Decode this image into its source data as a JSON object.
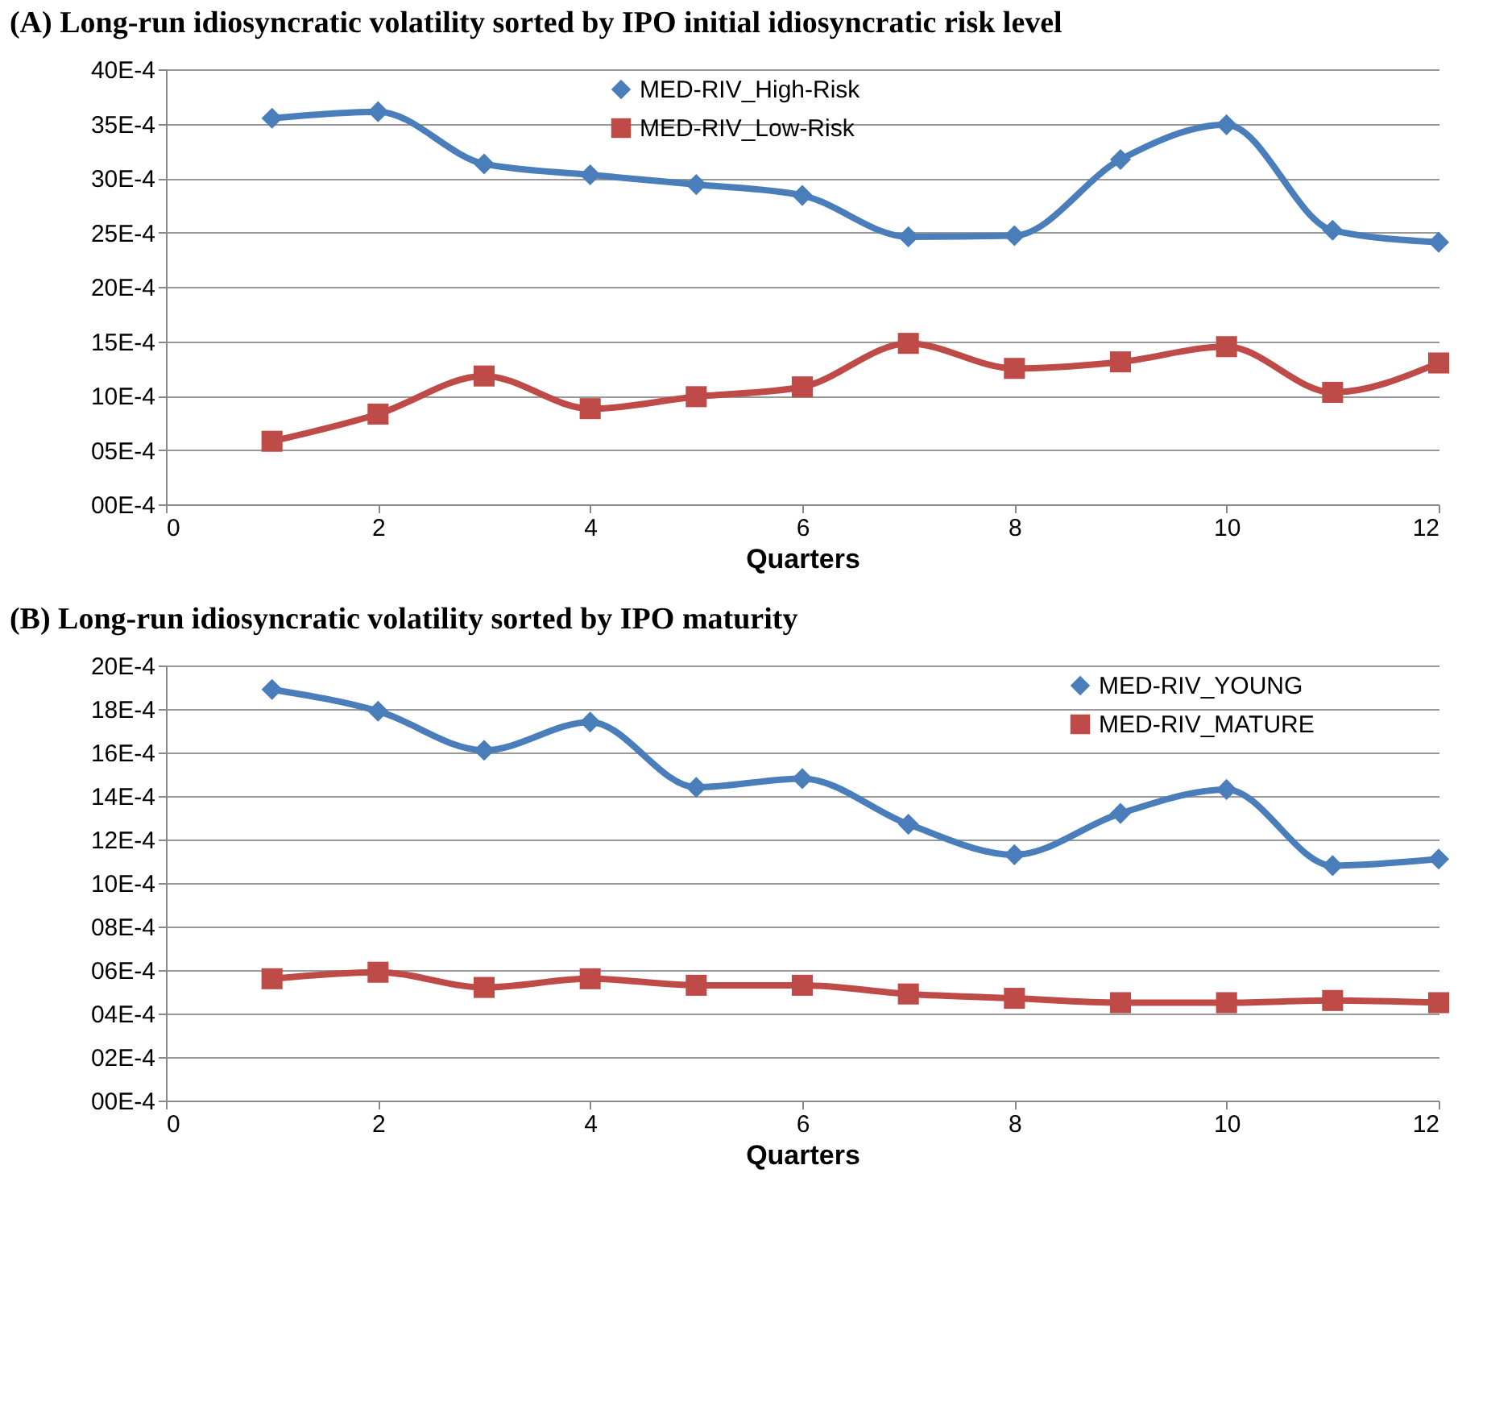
{
  "chart_data": [
    {
      "type": "line",
      "title": "(A) Long-run idiosyncratic volatility sorted by IPO initial idiosyncratic risk level",
      "xlabel": "Quarters",
      "x": [
        1,
        2,
        3,
        4,
        5,
        6,
        7,
        8,
        9,
        10,
        11,
        12
      ],
      "series": [
        {
          "name": "MED-RIV_High-Risk",
          "color": "#4a7ebb",
          "marker": "diamond",
          "values": [
            0.00355,
            0.00361,
            0.00313,
            0.00303,
            0.00294,
            0.00284,
            0.00246,
            0.00247,
            0.00317,
            0.00349,
            0.00252,
            0.00241
          ]
        },
        {
          "name": "MED-RIV_Low-Risk",
          "color": "#be4b48",
          "marker": "square",
          "values": [
            0.00058,
            0.00083,
            0.00118,
            0.00088,
            0.00099,
            0.00108,
            0.00148,
            0.00125,
            0.00131,
            0.00145,
            0.00103,
            0.0013
          ]
        }
      ],
      "xlim": [
        0,
        12
      ],
      "xticks": [
        0,
        2,
        4,
        6,
        8,
        10,
        12
      ],
      "ylim": [
        0,
        0.004
      ],
      "yticks": [
        {
          "value": 0,
          "label": "00E-4"
        },
        {
          "value": 0.0005,
          "label": "05E-4"
        },
        {
          "value": 0.001,
          "label": "10E-4"
        },
        {
          "value": 0.0015,
          "label": "15E-4"
        },
        {
          "value": 0.002,
          "label": "20E-4"
        },
        {
          "value": 0.0025,
          "label": "25E-4"
        },
        {
          "value": 0.003,
          "label": "30E-4"
        },
        {
          "value": 0.0035,
          "label": "35E-4"
        },
        {
          "value": 0.004,
          "label": "40E-4"
        }
      ],
      "grid": "y",
      "legend": "top"
    },
    {
      "type": "line",
      "title": "(B) Long-run idiosyncratic volatility sorted by IPO maturity",
      "xlabel": "Quarters",
      "x": [
        1,
        2,
        3,
        4,
        5,
        6,
        7,
        8,
        9,
        10,
        11,
        12
      ],
      "series": [
        {
          "name": "MED-RIV_YOUNG",
          "color": "#4a7ebb",
          "marker": "diamond",
          "values": [
            0.00189,
            0.00179,
            0.00161,
            0.00174,
            0.00144,
            0.00148,
            0.00127,
            0.00113,
            0.00132,
            0.00143,
            0.00108,
            0.00111
          ]
        },
        {
          "name": "MED-RIV_MATURE",
          "color": "#be4b48",
          "marker": "square",
          "values": [
            0.00056,
            0.00059,
            0.00052,
            0.00056,
            0.00053,
            0.00053,
            0.00049,
            0.00047,
            0.00045,
            0.00045,
            0.00046,
            0.00045
          ]
        }
      ],
      "xlim": [
        0,
        12
      ],
      "xticks": [
        0,
        2,
        4,
        6,
        8,
        10,
        12
      ],
      "ylim": [
        0,
        0.002
      ],
      "yticks": [
        {
          "value": 0,
          "label": "00E-4"
        },
        {
          "value": 0.0002,
          "label": "02E-4"
        },
        {
          "value": 0.0004,
          "label": "04E-4"
        },
        {
          "value": 0.0006,
          "label": "06E-4"
        },
        {
          "value": 0.0008,
          "label": "08E-4"
        },
        {
          "value": 0.001,
          "label": "10E-4"
        },
        {
          "value": 0.0012,
          "label": "12E-4"
        },
        {
          "value": 0.0014,
          "label": "14E-4"
        },
        {
          "value": 0.0016,
          "label": "16E-4"
        },
        {
          "value": 0.0018,
          "label": "18E-4"
        },
        {
          "value": 0.002,
          "label": "20E-4"
        }
      ],
      "grid": "y",
      "legend": "top right"
    }
  ]
}
